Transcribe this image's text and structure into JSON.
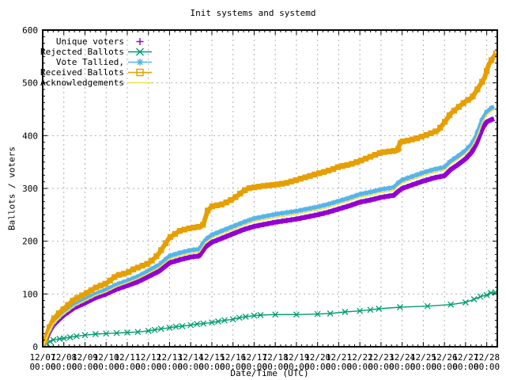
{
  "title": "Init systems and systemd",
  "axes": {
    "y": {
      "label": "Ballots / voters",
      "min": 0,
      "max": 600,
      "ticks": [
        0,
        100,
        200,
        300,
        400,
        500,
        600
      ],
      "minor_step": 12.5
    },
    "x": {
      "label": "Date/Time (UTC)",
      "tick_dates": [
        "12/07",
        "12/08",
        "12/09",
        "12/10",
        "12/11",
        "12/12",
        "12/13",
        "12/14",
        "12/15",
        "12/16",
        "12/17",
        "12/18",
        "12/19",
        "12/20",
        "12/21",
        "12/22",
        "12/23",
        "12/24",
        "12/25",
        "12/26",
        "12/27",
        "12/28"
      ],
      "tick_time": "00:00",
      "days_span": 21.5,
      "minor_per_day": 4
    }
  },
  "colors": {
    "unique_voters": "#9400d3",
    "rejected_ballots": "#009e73",
    "vote_tallied": "#56b4e9",
    "received_ballots": "#e69f00",
    "acknowledgements": "#f0e442",
    "grid": "#b0b0b0",
    "border": "#000000",
    "background": "#ffffff"
  },
  "chart_data": {
    "type": "line",
    "title": "Init systems and systemd",
    "xlabel": "Date/Time (UTC)",
    "ylabel": "Ballots / voters",
    "ylim": [
      0,
      600
    ],
    "x_unit": "days since 12/07 00:00 UTC",
    "grid": true,
    "legend_position": "top-left-inside",
    "series": [
      {
        "name": "unique-voters",
        "label": "Unique voters",
        "color": "#9400d3",
        "marker": "plus",
        "line_width": 6,
        "points": [
          [
            0,
            0
          ],
          [
            0.15,
            13
          ],
          [
            0.3,
            27
          ],
          [
            0.5,
            41
          ],
          [
            0.75,
            51
          ],
          [
            1,
            60
          ],
          [
            1.5,
            74
          ],
          [
            2,
            83
          ],
          [
            2.5,
            93
          ],
          [
            3,
            100
          ],
          [
            3.5,
            109
          ],
          [
            4,
            116
          ],
          [
            4.5,
            123
          ],
          [
            5,
            133
          ],
          [
            5.5,
            143
          ],
          [
            6,
            159
          ],
          [
            6.5,
            165
          ],
          [
            7,
            170
          ],
          [
            7.4,
            172
          ],
          [
            7.7,
            189
          ],
          [
            8,
            198
          ],
          [
            8.5,
            206
          ],
          [
            9,
            214
          ],
          [
            9.5,
            222
          ],
          [
            10,
            228
          ],
          [
            10.5,
            232
          ],
          [
            11,
            236
          ],
          [
            11.5,
            239
          ],
          [
            12,
            242
          ],
          [
            12.5,
            246
          ],
          [
            13,
            250
          ],
          [
            13.5,
            255
          ],
          [
            14,
            261
          ],
          [
            14.5,
            267
          ],
          [
            15,
            274
          ],
          [
            15.5,
            278
          ],
          [
            16,
            283
          ],
          [
            16.6,
            287
          ],
          [
            16.8,
            294
          ],
          [
            17,
            300
          ],
          [
            17.5,
            307
          ],
          [
            18,
            314
          ],
          [
            18.5,
            320
          ],
          [
            19,
            324
          ],
          [
            19.3,
            336
          ],
          [
            19.6,
            344
          ],
          [
            20,
            356
          ],
          [
            20.3,
            369
          ],
          [
            20.5,
            384
          ],
          [
            20.8,
            414
          ],
          [
            21,
            426
          ],
          [
            21.2,
            430
          ],
          [
            21.35,
            432
          ]
        ]
      },
      {
        "name": "rejected-ballots",
        "label": "Rejected Ballots",
        "color": "#009e73",
        "marker": "cross",
        "line_width": 1.4,
        "points": [
          [
            0,
            0
          ],
          [
            0.2,
            6
          ],
          [
            0.35,
            10
          ],
          [
            0.5,
            13
          ],
          [
            0.8,
            15
          ],
          [
            1,
            16
          ],
          [
            1.3,
            18
          ],
          [
            1.6,
            20
          ],
          [
            2,
            22
          ],
          [
            2.5,
            24
          ],
          [
            3,
            25
          ],
          [
            3.5,
            26
          ],
          [
            4,
            27
          ],
          [
            4.5,
            28
          ],
          [
            5,
            30
          ],
          [
            5.3,
            32
          ],
          [
            5.6,
            34
          ],
          [
            6,
            36
          ],
          [
            6.3,
            38
          ],
          [
            6.6,
            39
          ],
          [
            7,
            41
          ],
          [
            7.3,
            43
          ],
          [
            7.6,
            44
          ],
          [
            8,
            46
          ],
          [
            8.3,
            48
          ],
          [
            8.6,
            50
          ],
          [
            9,
            52
          ],
          [
            9.3,
            55
          ],
          [
            9.6,
            57
          ],
          [
            10,
            59
          ],
          [
            10.3,
            60
          ],
          [
            11,
            61
          ],
          [
            12,
            61
          ],
          [
            13,
            62
          ],
          [
            13.6,
            63
          ],
          [
            14.3,
            66
          ],
          [
            15,
            68
          ],
          [
            15.5,
            70
          ],
          [
            15.9,
            72
          ],
          [
            16.9,
            75
          ],
          [
            18.2,
            77
          ],
          [
            19.3,
            80
          ],
          [
            20,
            84
          ],
          [
            20.4,
            90
          ],
          [
            20.7,
            95
          ],
          [
            21,
            98
          ],
          [
            21.2,
            102
          ],
          [
            21.4,
            103
          ]
        ]
      },
      {
        "name": "vote-tallied",
        "label": "Vote Tallied,",
        "color": "#56b4e9",
        "marker": "asterisk",
        "line_width": 5,
        "points": [
          [
            0,
            0
          ],
          [
            0.15,
            15
          ],
          [
            0.3,
            30
          ],
          [
            0.5,
            45
          ],
          [
            0.75,
            56
          ],
          [
            1,
            65
          ],
          [
            1.5,
            80
          ],
          [
            2,
            90
          ],
          [
            2.5,
            100
          ],
          [
            3,
            108
          ],
          [
            3.5,
            118
          ],
          [
            4,
            125
          ],
          [
            4.5,
            133
          ],
          [
            5,
            144
          ],
          [
            5.5,
            155
          ],
          [
            6,
            172
          ],
          [
            6.5,
            178
          ],
          [
            7,
            183
          ],
          [
            7.4,
            185
          ],
          [
            7.7,
            203
          ],
          [
            8,
            212
          ],
          [
            8.5,
            220
          ],
          [
            9,
            228
          ],
          [
            9.5,
            236
          ],
          [
            10,
            243
          ],
          [
            10.5,
            247
          ],
          [
            11,
            251
          ],
          [
            11.5,
            254
          ],
          [
            12,
            257
          ],
          [
            12.5,
            261
          ],
          [
            13,
            265
          ],
          [
            13.5,
            270
          ],
          [
            14,
            276
          ],
          [
            14.5,
            282
          ],
          [
            15,
            289
          ],
          [
            15.5,
            293
          ],
          [
            16,
            298
          ],
          [
            16.6,
            302
          ],
          [
            16.8,
            310
          ],
          [
            17,
            316
          ],
          [
            17.5,
            323
          ],
          [
            18,
            330
          ],
          [
            18.5,
            336
          ],
          [
            19,
            340
          ],
          [
            19.3,
            352
          ],
          [
            19.6,
            360
          ],
          [
            20,
            372
          ],
          [
            20.3,
            385
          ],
          [
            20.5,
            400
          ],
          [
            20.8,
            432
          ],
          [
            21,
            445
          ],
          [
            21.2,
            452
          ],
          [
            21.35,
            455
          ]
        ]
      },
      {
        "name": "received-ballots",
        "label": "Received Ballots",
        "color": "#e69f00",
        "marker": "square",
        "line_width": 6,
        "points": [
          [
            0,
            0
          ],
          [
            0.15,
            18
          ],
          [
            0.3,
            35
          ],
          [
            0.5,
            52
          ],
          [
            0.75,
            63
          ],
          [
            1,
            72
          ],
          [
            1.5,
            90
          ],
          [
            2,
            100
          ],
          [
            2.5,
            112
          ],
          [
            3,
            120
          ],
          [
            3.5,
            135
          ],
          [
            4,
            140
          ],
          [
            4.3,
            147
          ],
          [
            4.5,
            150
          ],
          [
            5,
            158
          ],
          [
            5.3,
            168
          ],
          [
            5.5,
            177
          ],
          [
            5.8,
            195
          ],
          [
            6,
            207
          ],
          [
            6.5,
            220
          ],
          [
            7,
            225
          ],
          [
            7.5,
            228
          ],
          [
            7.6,
            232
          ],
          [
            7.8,
            258
          ],
          [
            8,
            266
          ],
          [
            8.5,
            270
          ],
          [
            9,
            280
          ],
          [
            9.5,
            295
          ],
          [
            9.7,
            300
          ],
          [
            10,
            302
          ],
          [
            10.5,
            305
          ],
          [
            11,
            307
          ],
          [
            11.5,
            310
          ],
          [
            12,
            316
          ],
          [
            12.5,
            322
          ],
          [
            13,
            328
          ],
          [
            13.2,
            330
          ],
          [
            13.7,
            336
          ],
          [
            14,
            341
          ],
          [
            14.5,
            345
          ],
          [
            15,
            352
          ],
          [
            15.5,
            360
          ],
          [
            16,
            368
          ],
          [
            16.8,
            372
          ],
          [
            16.9,
            388
          ],
          [
            17.2,
            390
          ],
          [
            17.7,
            395
          ],
          [
            18.2,
            402
          ],
          [
            18.7,
            410
          ],
          [
            19,
            425
          ],
          [
            19.3,
            442
          ],
          [
            19.6,
            452
          ],
          [
            20,
            465
          ],
          [
            20.3,
            472
          ],
          [
            20.6,
            490
          ],
          [
            20.9,
            510
          ],
          [
            21.1,
            535
          ],
          [
            21.3,
            548
          ],
          [
            21.45,
            556
          ]
        ]
      },
      {
        "name": "acknowledgements",
        "label": "Acknowledgements",
        "color": "#f0e442",
        "marker": "none",
        "line_width": 1.6,
        "points": [
          [
            0,
            0
          ],
          [
            0.15,
            14
          ],
          [
            0.3,
            28
          ],
          [
            0.5,
            43
          ],
          [
            0.75,
            53
          ],
          [
            1,
            62
          ],
          [
            1.5,
            77
          ],
          [
            2,
            87
          ],
          [
            2.5,
            97
          ],
          [
            3,
            104
          ],
          [
            3.5,
            114
          ],
          [
            4,
            121
          ],
          [
            4.5,
            129
          ],
          [
            5,
            139
          ],
          [
            5.5,
            150
          ],
          [
            6,
            166
          ],
          [
            6.5,
            172
          ],
          [
            7,
            177
          ],
          [
            7.4,
            179
          ],
          [
            7.7,
            197
          ],
          [
            8,
            206
          ],
          [
            8.5,
            214
          ],
          [
            9,
            222
          ],
          [
            9.5,
            230
          ],
          [
            10,
            237
          ],
          [
            10.5,
            241
          ],
          [
            11,
            245
          ],
          [
            11.5,
            248
          ],
          [
            12,
            251
          ],
          [
            12.5,
            255
          ],
          [
            13,
            259
          ],
          [
            13.5,
            264
          ],
          [
            14,
            270
          ],
          [
            14.5,
            276
          ],
          [
            15,
            283
          ],
          [
            15.5,
            287
          ],
          [
            16,
            292
          ],
          [
            16.6,
            296
          ],
          [
            16.8,
            304
          ],
          [
            17,
            310
          ],
          [
            17.5,
            317
          ],
          [
            18,
            324
          ],
          [
            18.5,
            330
          ],
          [
            19,
            334
          ],
          [
            19.3,
            346
          ],
          [
            19.6,
            354
          ],
          [
            20,
            366
          ],
          [
            20.3,
            379
          ],
          [
            20.5,
            394
          ],
          [
            20.8,
            426
          ],
          [
            21,
            439
          ],
          [
            21.2,
            446
          ],
          [
            21.35,
            449
          ]
        ]
      }
    ]
  }
}
